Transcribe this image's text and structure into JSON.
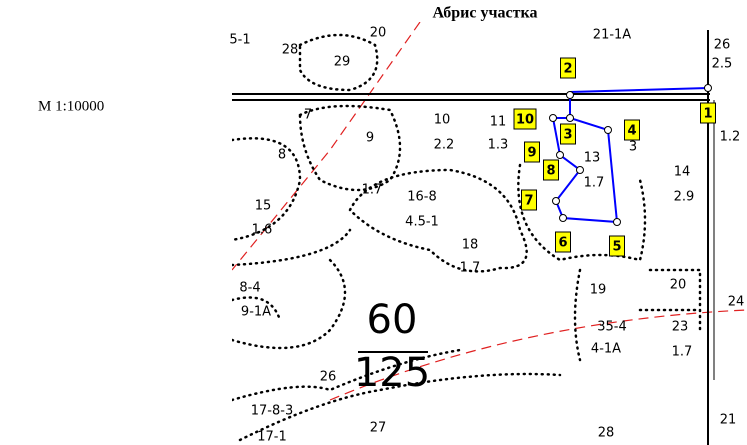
{
  "title": "Абрис участка",
  "scale": "М 1:10000",
  "points": [
    "1",
    "2",
    "3",
    "4",
    "5",
    "6",
    "7",
    "8",
    "9",
    "10"
  ],
  "labels": [
    "5-1",
    "28",
    "29",
    "20",
    "21-1А",
    "26",
    "2.5",
    "7",
    "9",
    "10",
    "2.2",
    "11",
    "1.3",
    "8",
    "1.7",
    "13",
    "1.7",
    "3",
    "1.2",
    "14",
    "2.9",
    "16-8",
    "4.5-1",
    "15",
    "1.6",
    "18",
    "1.7",
    "8-4",
    "9-1А",
    "19",
    "20",
    "24",
    "35-4",
    "23",
    "4-1А",
    "1.7",
    "60",
    "125",
    "26",
    "17-8-3",
    "17-1",
    "27",
    "28",
    "21"
  ]
}
